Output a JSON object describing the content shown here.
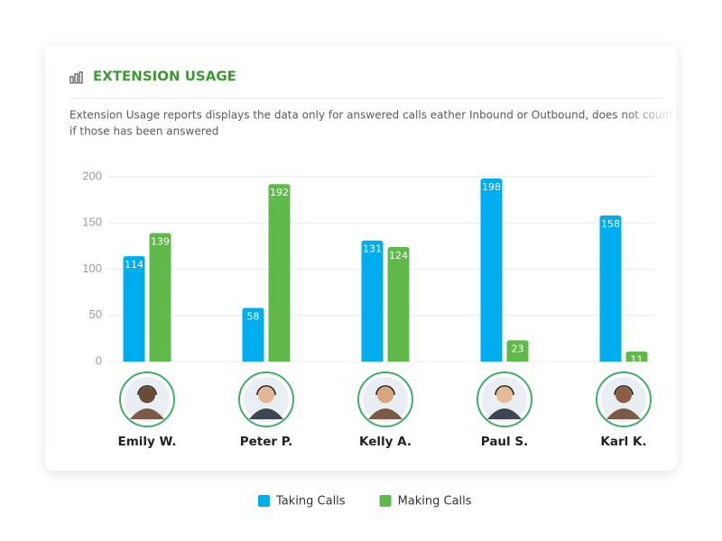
{
  "chart_data": {
    "type": "bar",
    "title": "EXTENSION USAGE",
    "description": [
      "Extension Usage reports displays the data only for answered calls eather Inbound or Outbound, does not count mi",
      "if those has been answered"
    ],
    "categories": [
      "Emily W.",
      "Peter P.",
      "Kelly A.",
      "Paul S.",
      "Karl K."
    ],
    "series": [
      {
        "name": "Taking Calls",
        "color": "#00aeef",
        "values": [
          114,
          58,
          131,
          198,
          158
        ]
      },
      {
        "name": "Making Calls",
        "color": "#62b94b",
        "values": [
          139,
          192,
          124,
          23,
          11
        ]
      }
    ],
    "ylim": [
      0,
      200
    ],
    "yticks": [
      0,
      50,
      100,
      150,
      200
    ],
    "grid": true,
    "legend": "bottom"
  }
}
